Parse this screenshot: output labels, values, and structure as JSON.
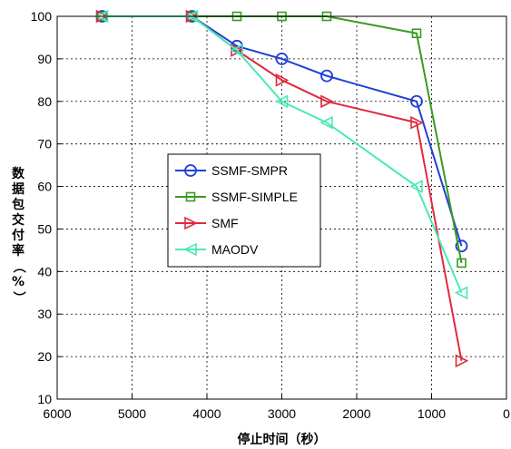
{
  "chart_data": {
    "type": "line",
    "title": "",
    "xlabel": "停止时间（秒）",
    "ylabel": "数据包交付率（%）",
    "xlim": [
      6000,
      0
    ],
    "ylim": [
      10,
      100
    ],
    "x_reversed": true,
    "xticks": [
      6000,
      5000,
      4000,
      3000,
      2000,
      1000,
      0
    ],
    "yticks": [
      10,
      20,
      30,
      40,
      50,
      60,
      70,
      80,
      90,
      100
    ],
    "grid": true,
    "legend_position": "center-left",
    "series": [
      {
        "name": "SSMF-SMPR",
        "color": "#1f3fd6",
        "marker": "circle",
        "x": [
          5400,
          4200,
          3600,
          3000,
          2400,
          1200,
          600
        ],
        "y": [
          100,
          100,
          93,
          90,
          86,
          80,
          46
        ]
      },
      {
        "name": "SSMF-SIMPLE",
        "color": "#3a9a22",
        "marker": "square",
        "x": [
          5400,
          4200,
          3600,
          3000,
          2400,
          1200,
          600
        ],
        "y": [
          100,
          100,
          100,
          100,
          100,
          96,
          42
        ]
      },
      {
        "name": "SMF",
        "color": "#e02a3c",
        "marker": "triangle-right",
        "x": [
          5400,
          4200,
          3600,
          3000,
          2400,
          1200,
          600
        ],
        "y": [
          100,
          100,
          92,
          85,
          80,
          75,
          19
        ]
      },
      {
        "name": "MAODV",
        "color": "#4de8b8",
        "marker": "triangle-left",
        "x": [
          5400,
          4200,
          3600,
          3000,
          2400,
          1200,
          600
        ],
        "y": [
          100,
          100,
          92,
          80,
          75,
          60,
          35
        ]
      }
    ]
  }
}
